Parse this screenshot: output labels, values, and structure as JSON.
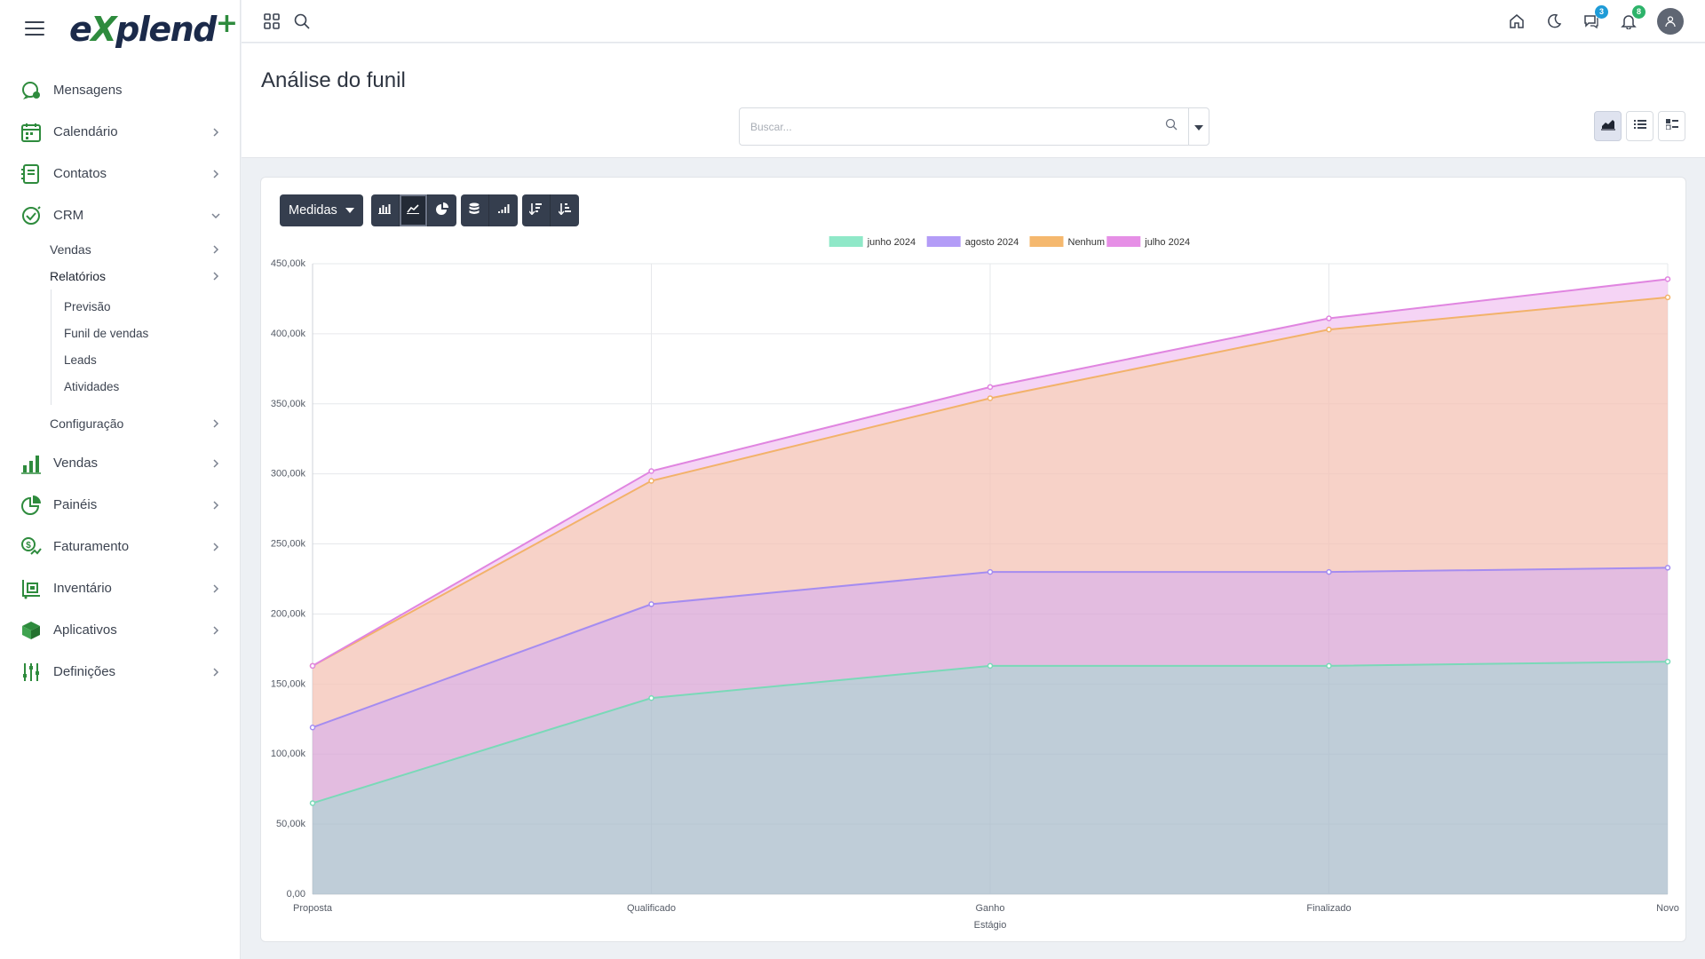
{
  "brand": {
    "logo_text_1": "e",
    "logo_x": "X",
    "logo_text_2": "plend",
    "logo_plus": "+"
  },
  "sidebar": {
    "items": [
      {
        "label": "Mensagens",
        "icon": "chat-icon",
        "chevron": false
      },
      {
        "label": "Calendário",
        "icon": "calendar-icon",
        "chevron": true
      },
      {
        "label": "Contatos",
        "icon": "contacts-book-icon",
        "chevron": true
      },
      {
        "label": "CRM",
        "icon": "crm-handshake-icon",
        "chevron": "down"
      },
      {
        "label": "Vendas",
        "icon": "bar-chart-icon",
        "chevron": true
      },
      {
        "label": "Painéis",
        "icon": "pie-chart-icon",
        "chevron": true
      },
      {
        "label": "Faturamento",
        "icon": "invoice-dollar-icon",
        "chevron": true
      },
      {
        "label": "Inventário",
        "icon": "inventory-cart-icon",
        "chevron": true
      },
      {
        "label": "Aplicativos",
        "icon": "box-icon",
        "chevron": true
      },
      {
        "label": "Definições",
        "icon": "sliders-icon",
        "chevron": true
      }
    ],
    "crm_sub": {
      "vendas": "Vendas",
      "relatorios": "Relatórios",
      "relatorios_sub": [
        "Previsão",
        "Funil de vendas",
        "Leads",
        "Atividades"
      ],
      "configuracao": "Configuração"
    }
  },
  "topbar": {
    "left_icons": [
      "apps-grid-icon",
      "search-icon"
    ],
    "right_icons": [
      "home-icon",
      "moon-icon",
      "messages-icon",
      "bell-icon",
      "user-avatar-icon"
    ],
    "messages_badge": "3",
    "notifications_badge": "8",
    "messages_badge_color": "#1e9bd7",
    "notifications_badge_color": "#2db36a"
  },
  "page": {
    "title": "Análise do funil",
    "search_placeholder": "Buscar...",
    "views": [
      "graph-view-icon",
      "list-view-icon",
      "pivot-view-icon"
    ]
  },
  "toolbar": {
    "measures_label": "Medidas",
    "chart_types": [
      "bar-chart-icon",
      "line-chart-icon",
      "pie-chart-icon"
    ],
    "active_type": "line-chart-icon",
    "stack_buttons": [
      "stacked-icon",
      "cumulative-icon"
    ],
    "sort_buttons": [
      "sort-descending-icon",
      "sort-ascending-icon"
    ]
  },
  "chart_data": {
    "type": "area",
    "stacked": true,
    "x_label": "Estágio",
    "categories": [
      "Proposta",
      "Qualificado",
      "Ganho",
      "Finalizado",
      "Novo"
    ],
    "y_ticks": [
      "0,00",
      "50,00k",
      "100,00k",
      "150,00k",
      "200,00k",
      "250,00k",
      "300,00k",
      "350,00k",
      "400,00k",
      "450,00k"
    ],
    "ylim": [
      0,
      450000
    ],
    "grid": true,
    "legend_position": "top-center",
    "series": [
      {
        "name": "junho 2024",
        "color": "#8fe8c8",
        "line": "#7ad9b8",
        "values": [
          65000,
          140000,
          163000,
          163000,
          166000
        ]
      },
      {
        "name": "agosto 2024",
        "color": "#b39cf7",
        "line": "#a58cf0",
        "values": [
          54000,
          67000,
          67000,
          67000,
          67000
        ]
      },
      {
        "name": "Nenhum",
        "color": "#f5b86e",
        "line": "#f2b26a",
        "values": [
          44000,
          88000,
          124000,
          173000,
          193000
        ]
      },
      {
        "name": "julho 2024",
        "color": "#e68fe6",
        "line": "#e085e0",
        "values": [
          0,
          7000,
          8000,
          8000,
          13000
        ]
      }
    ]
  }
}
